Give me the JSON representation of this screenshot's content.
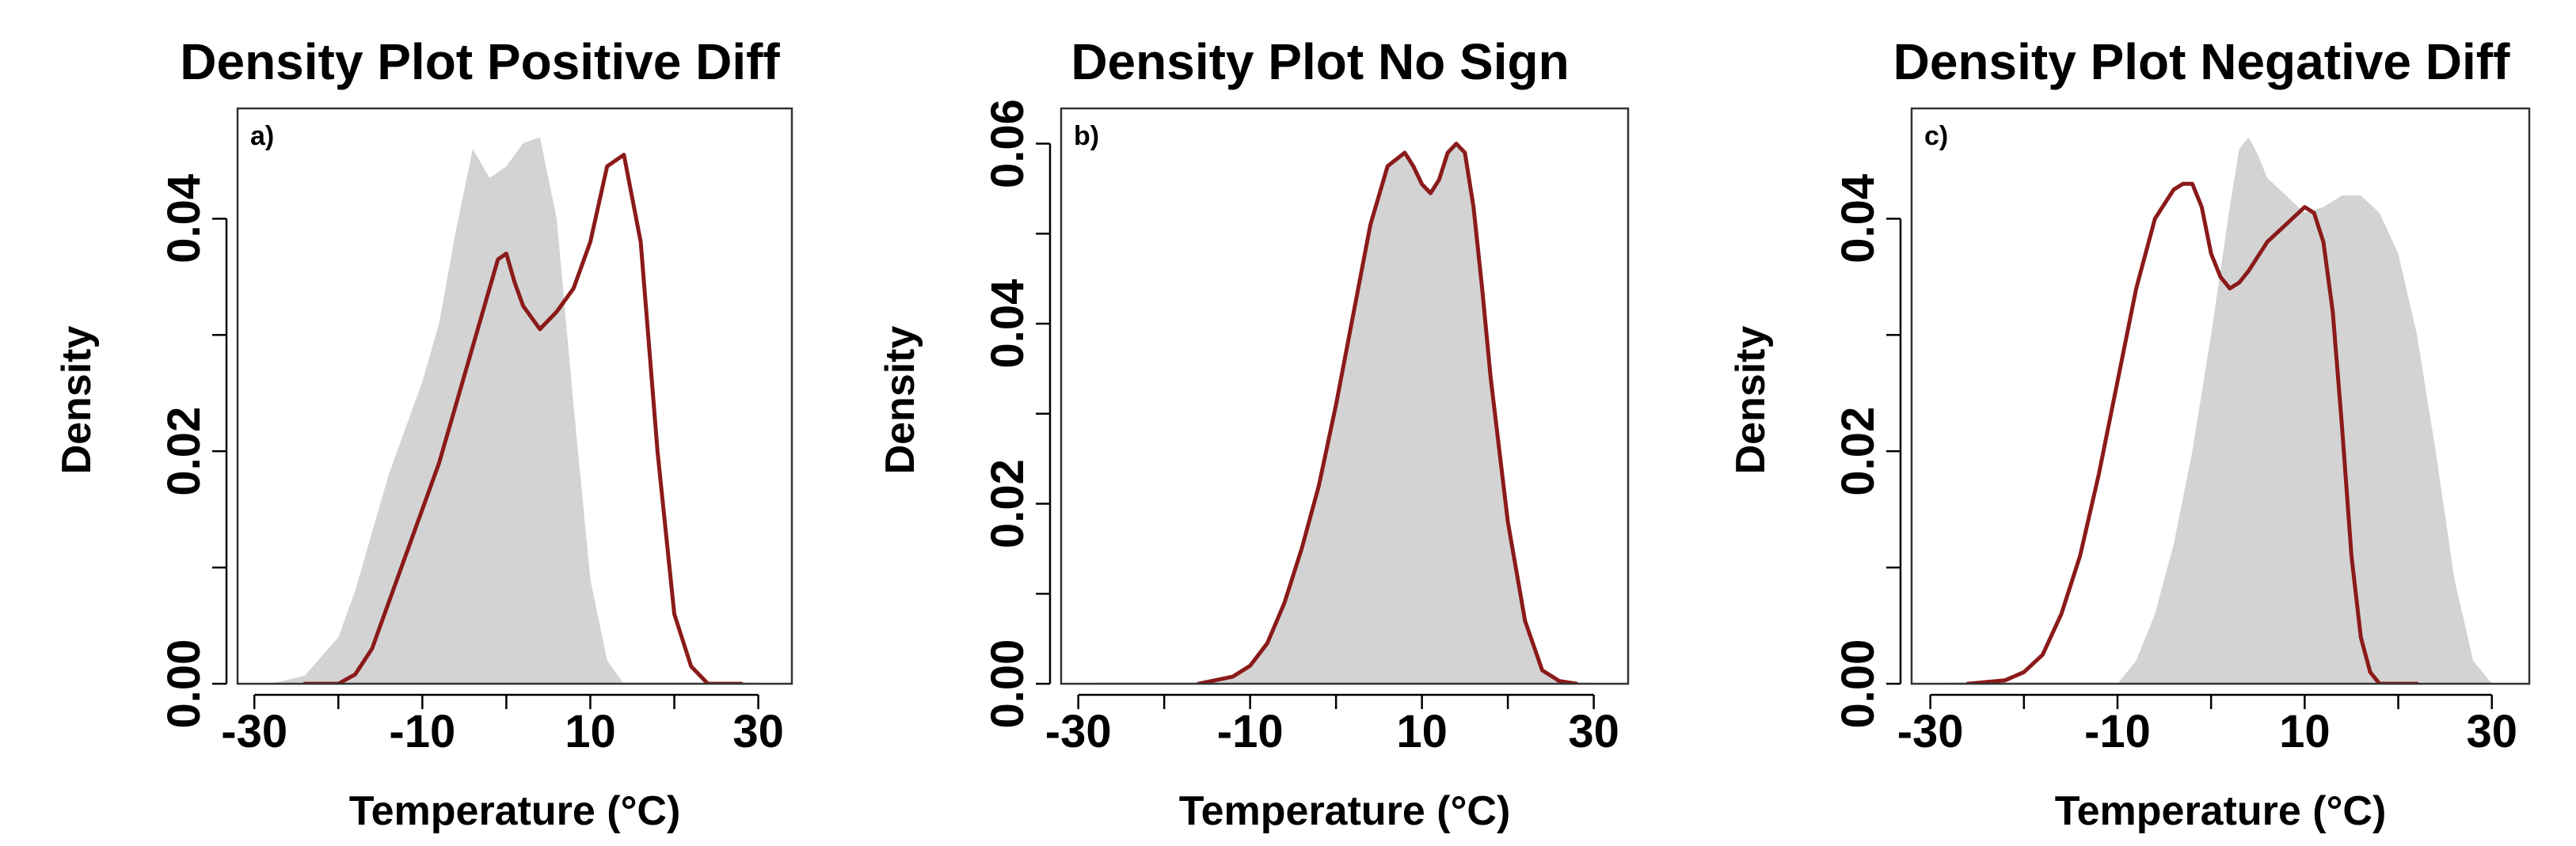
{
  "colors": {
    "grey_fill": "#d3d3d3",
    "red_line": "#8b1a1a"
  },
  "chart_data": [
    {
      "type": "area",
      "panel_letter": "a)",
      "title": "Density Plot Positive Diff",
      "xlabel": "Temperature (°C)",
      "ylabel": "Density",
      "xlim": [
        -32,
        34
      ],
      "ylim": [
        0,
        0.048
      ],
      "xticks": [
        -30,
        -20,
        -10,
        0,
        10,
        20,
        30
      ],
      "xtick_labels": [
        "-30",
        "",
        "-10",
        "",
        "10",
        "",
        "30"
      ],
      "yticks": [
        0,
        0.01,
        0.02,
        0.03,
        0.04
      ],
      "ytick_labels": [
        "0.00",
        "",
        "0.02",
        "",
        "0.04"
      ],
      "series": [
        {
          "style": "filled",
          "x": [
            -28,
            -24,
            -20,
            -18,
            -16,
            -14,
            -12,
            -10,
            -8,
            -6,
            -4,
            -2,
            0,
            2,
            4,
            6,
            8,
            10,
            12,
            14
          ],
          "y": [
            0,
            0.0007,
            0.004,
            0.008,
            0.013,
            0.018,
            0.022,
            0.026,
            0.031,
            0.039,
            0.046,
            0.0435,
            0.0445,
            0.0465,
            0.047,
            0.04,
            0.024,
            0.009,
            0.002,
            0
          ]
        },
        {
          "style": "line",
          "x": [
            -24,
            -20,
            -18,
            -16,
            -14,
            -12,
            -10,
            -8,
            -6,
            -4,
            -2,
            -1,
            0,
            1,
            2,
            4,
            6,
            8,
            10,
            12,
            14,
            16,
            18,
            20,
            22,
            24,
            26,
            28
          ],
          "y": [
            0,
            0,
            0.0008,
            0.003,
            0.007,
            0.011,
            0.015,
            0.019,
            0.024,
            0.029,
            0.034,
            0.0365,
            0.037,
            0.0345,
            0.0325,
            0.0305,
            0.032,
            0.034,
            0.038,
            0.0445,
            0.0455,
            0.038,
            0.02,
            0.006,
            0.0015,
            0,
            0,
            0
          ]
        }
      ]
    },
    {
      "type": "area",
      "panel_letter": "b)",
      "title": "Density Plot No Sign",
      "xlabel": "Temperature (°C)",
      "ylabel": "Density",
      "xlim": [
        -32,
        34
      ],
      "ylim": [
        0,
        0.062
      ],
      "xticks": [
        -30,
        -20,
        -10,
        0,
        10,
        20,
        30
      ],
      "xtick_labels": [
        "-30",
        "",
        "-10",
        "",
        "10",
        "",
        "30"
      ],
      "yticks": [
        0,
        0.01,
        0.02,
        0.03,
        0.04,
        0.05,
        0.06
      ],
      "ytick_labels": [
        "0.00",
        "",
        "0.02",
        "",
        "0.04",
        "",
        "0.06"
      ],
      "series": [
        {
          "style": "filled",
          "x": [
            -16,
            -12,
            -10,
            -8,
            -6,
            -4,
            -2,
            0,
            2,
            4,
            6,
            8,
            9,
            10,
            11,
            12,
            13,
            14,
            15,
            16,
            17,
            18,
            20,
            22,
            24,
            26,
            28
          ],
          "y": [
            0,
            0.0008,
            0.002,
            0.0045,
            0.009,
            0.015,
            0.022,
            0.031,
            0.041,
            0.051,
            0.0575,
            0.059,
            0.0575,
            0.0555,
            0.0545,
            0.056,
            0.059,
            0.06,
            0.059,
            0.053,
            0.044,
            0.034,
            0.018,
            0.007,
            0.0015,
            0.0003,
            0
          ]
        },
        {
          "style": "line",
          "x": [
            -16,
            -12,
            -10,
            -8,
            -6,
            -4,
            -2,
            0,
            2,
            4,
            6,
            8,
            9,
            10,
            11,
            12,
            13,
            14,
            15,
            16,
            17,
            18,
            20,
            22,
            24,
            26,
            28
          ],
          "y": [
            0,
            0.0008,
            0.002,
            0.0045,
            0.009,
            0.015,
            0.022,
            0.031,
            0.041,
            0.051,
            0.0575,
            0.059,
            0.0575,
            0.0555,
            0.0545,
            0.056,
            0.059,
            0.06,
            0.059,
            0.053,
            0.044,
            0.034,
            0.018,
            0.007,
            0.0015,
            0.0003,
            0
          ]
        }
      ]
    },
    {
      "type": "area",
      "panel_letter": "c)",
      "title": "Density Plot Negative Diff",
      "xlabel": "Temperature (°C)",
      "ylabel": "Density",
      "xlim": [
        -32,
        34
      ],
      "ylim": [
        0,
        0.048
      ],
      "xticks": [
        -30,
        -20,
        -10,
        0,
        10,
        20,
        30
      ],
      "xtick_labels": [
        "-30",
        "",
        "-10",
        "",
        "10",
        "",
        "30"
      ],
      "yticks": [
        0,
        0.01,
        0.02,
        0.03,
        0.04
      ],
      "ytick_labels": [
        "0.00",
        "",
        "0.02",
        "",
        "0.04"
      ],
      "series": [
        {
          "style": "filled",
          "x": [
            -10,
            -8,
            -6,
            -4,
            -2,
            0,
            2,
            3,
            4,
            5,
            6,
            8,
            10,
            12,
            14,
            16,
            18,
            20,
            22,
            24,
            26,
            28,
            30
          ],
          "y": [
            0,
            0.002,
            0.006,
            0.012,
            0.02,
            0.03,
            0.041,
            0.046,
            0.047,
            0.0455,
            0.0435,
            0.042,
            0.0405,
            0.041,
            0.042,
            0.042,
            0.0405,
            0.037,
            0.03,
            0.02,
            0.009,
            0.002,
            0
          ]
        },
        {
          "style": "line",
          "x": [
            -26,
            -22,
            -20,
            -18,
            -16,
            -14,
            -12,
            -10,
            -8,
            -6,
            -4,
            -3,
            -2,
            -1,
            0,
            1,
            2,
            3,
            4,
            6,
            8,
            10,
            11,
            12,
            13,
            14,
            15,
            16,
            17,
            18,
            20,
            22
          ],
          "y": [
            0,
            0.0003,
            0.001,
            0.0025,
            0.006,
            0.011,
            0.018,
            0.026,
            0.034,
            0.04,
            0.0425,
            0.043,
            0.043,
            0.041,
            0.037,
            0.035,
            0.034,
            0.0345,
            0.0355,
            0.038,
            0.0395,
            0.041,
            0.0405,
            0.038,
            0.032,
            0.022,
            0.011,
            0.004,
            0.001,
            0,
            0,
            0
          ]
        }
      ]
    }
  ]
}
